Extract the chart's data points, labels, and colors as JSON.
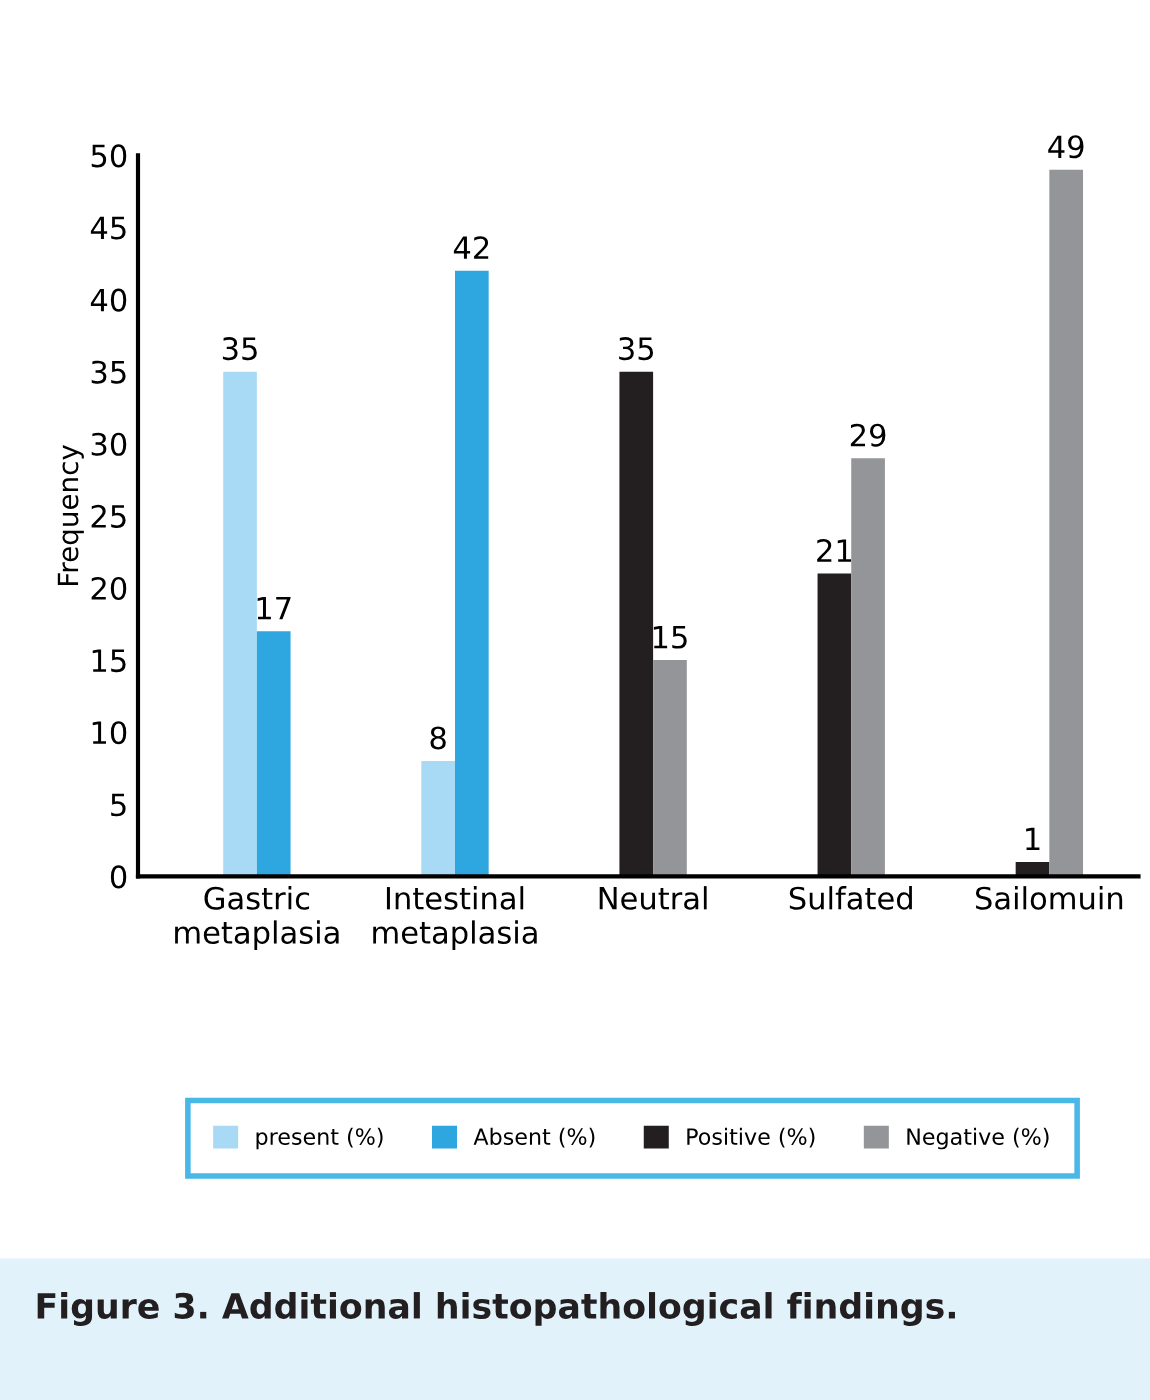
{
  "chart_data": {
    "type": "bar",
    "title": "Figure 3. Additional histopathological findings.",
    "ylabel": "Frequency",
    "categories": [
      "Gastric\nmetaplasia",
      "Intestinal\nmetaplasia",
      "Neutral",
      "Sulfated",
      "Sailomuin"
    ],
    "series": [
      {
        "name": "present (%)",
        "color": "#a9daf5",
        "values": [
          35,
          8,
          null,
          null,
          null
        ]
      },
      {
        "name": "Absent (%)",
        "color": "#2ea6df",
        "values": [
          17,
          42,
          null,
          null,
          null
        ]
      },
      {
        "name": "Positive (%)",
        "color": "#231f20",
        "values": [
          null,
          null,
          35,
          21,
          1
        ]
      },
      {
        "name": "Negative (%)",
        "color": "#939598",
        "values": [
          null,
          null,
          15,
          29,
          49
        ]
      }
    ],
    "ylim": [
      0,
      50
    ],
    "yticks": [
      0,
      5,
      10,
      15,
      20,
      25,
      30,
      35,
      40,
      45,
      50
    ],
    "grid": false,
    "legend": "bottom",
    "data_labels": true
  }
}
